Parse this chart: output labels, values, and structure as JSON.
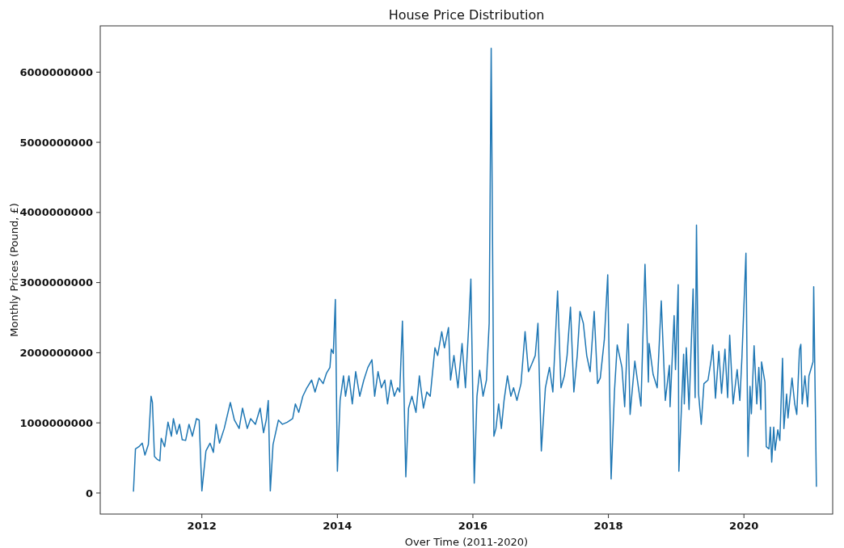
{
  "chart_data": {
    "type": "line",
    "title": "House Price Distribution",
    "xlabel": "Over Time (2011-2020)",
    "ylabel": "Monthly Prices (Pound, £)",
    "xlim": [
      2010.5,
      2021.31
    ],
    "xticks": [
      2012,
      2014,
      2016,
      2018,
      2020
    ],
    "ylim": [
      -300000000,
      6660000000
    ],
    "yticks": [
      0,
      1000000000,
      2000000000,
      3000000000,
      4000000000,
      5000000000,
      6000000000
    ],
    "grid": false,
    "marker": "none",
    "line_style": "solid",
    "x": [
      2010.99,
      2011.02,
      2011.07,
      2011.12,
      2011.16,
      2011.21,
      2011.25,
      2011.27,
      2011.3,
      2011.34,
      2011.38,
      2011.4,
      2011.45,
      2011.5,
      2011.55,
      2011.58,
      2011.63,
      2011.67,
      2011.71,
      2011.76,
      2011.81,
      2011.86,
      2011.92,
      2011.96,
      2012.0,
      2012.06,
      2012.12,
      2012.17,
      2012.21,
      2012.26,
      2012.33,
      2012.42,
      2012.48,
      2012.55,
      2012.6,
      2012.67,
      2012.72,
      2012.79,
      2012.86,
      2012.91,
      2012.95,
      2012.98,
      2013.01,
      2013.05,
      2013.13,
      2013.19,
      2013.26,
      2013.34,
      2013.38,
      2013.43,
      2013.49,
      2013.55,
      2013.62,
      2013.67,
      2013.73,
      2013.79,
      2013.84,
      2013.89,
      2013.91,
      2013.94,
      2013.97,
      2014.0,
      2014.04,
      2014.09,
      2014.12,
      2014.17,
      2014.22,
      2014.27,
      2014.33,
      2014.39,
      2014.45,
      2014.51,
      2014.55,
      2014.6,
      2014.65,
      2014.7,
      2014.74,
      2014.79,
      2014.84,
      2014.89,
      2014.92,
      2014.96,
      2015.01,
      2015.05,
      2015.1,
      2015.16,
      2015.21,
      2015.27,
      2015.32,
      2015.37,
      2015.44,
      2015.48,
      2015.54,
      2015.58,
      2015.64,
      2015.67,
      2015.72,
      2015.78,
      2015.84,
      2015.89,
      2015.94,
      2015.97,
      2016.02,
      2016.06,
      2016.1,
      2016.15,
      2016.2,
      2016.24,
      2016.27,
      2016.31,
      2016.34,
      2016.38,
      2016.42,
      2016.46,
      2016.51,
      2016.56,
      2016.6,
      2016.65,
      2016.71,
      2016.77,
      2016.82,
      2016.87,
      2016.92,
      2016.96,
      2017.01,
      2017.07,
      2017.13,
      2017.18,
      2017.25,
      2017.3,
      2017.35,
      2017.39,
      2017.44,
      2017.49,
      2017.54,
      2017.58,
      2017.63,
      2017.68,
      2017.73,
      2017.79,
      2017.84,
      2017.88,
      2017.94,
      2017.99,
      2018.04,
      2018.09,
      2018.13,
      2018.2,
      2018.24,
      2018.29,
      2018.32,
      2018.39,
      2018.48,
      2018.54,
      2018.59,
      2018.6,
      2018.66,
      2018.72,
      2018.78,
      2018.84,
      2018.9,
      2018.91,
      2018.97,
      2018.99,
      2019.03,
      2019.04,
      2019.11,
      2019.12,
      2019.15,
      2019.19,
      2019.25,
      2019.28,
      2019.3,
      2019.33,
      2019.37,
      2019.41,
      2019.47,
      2019.52,
      2019.54,
      2019.58,
      2019.63,
      2019.67,
      2019.72,
      2019.76,
      2019.79,
      2019.84,
      2019.9,
      2019.94,
      2019.97,
      2020.03,
      2020.06,
      2020.09,
      2020.11,
      2020.15,
      2020.19,
      2020.22,
      2020.25,
      2020.26,
      2020.31,
      2020.33,
      2020.37,
      2020.39,
      2020.41,
      2020.44,
      2020.46,
      2020.5,
      2020.53,
      2020.57,
      2020.59,
      2020.63,
      2020.65,
      2020.71,
      2020.75,
      2020.78,
      2020.82,
      2020.84,
      2020.86,
      2020.9,
      2020.94,
      2020.96,
      2021.02,
      2021.03,
      2021.07
    ],
    "series": [
      {
        "color": "#1f77b4",
        "values": [
          20000000.0,
          630000000.0,
          660000000.0,
          710000000.0,
          540000000.0,
          690000000.0,
          1380000000.0,
          1290000000.0,
          520000000.0,
          480000000.0,
          460000000.0,
          780000000.0,
          660000000.0,
          1010000000.0,
          810000000.0,
          1060000000.0,
          840000000.0,
          980000000.0,
          760000000.0,
          750000000.0,
          980000000.0,
          810000000.0,
          1060000000.0,
          1040000000.0,
          30000000.0,
          600000000.0,
          710000000.0,
          580000000.0,
          980000000.0,
          710000000.0,
          920000000.0,
          1290000000.0,
          1040000000.0,
          920000000.0,
          1210000000.0,
          920000000.0,
          1060000000.0,
          980000000.0,
          1210000000.0,
          860000000.0,
          1040000000.0,
          1320000000.0,
          30000000.0,
          690000000.0,
          1040000000.0,
          980000000.0,
          1010000000.0,
          1060000000.0,
          1270000000.0,
          1150000000.0,
          1380000000.0,
          1500000000.0,
          1610000000.0,
          1440000000.0,
          1640000000.0,
          1560000000.0,
          1710000000.0,
          1790000000.0,
          2050000000.0,
          1990000000.0,
          2760000000.0,
          310000000.0,
          1320000000.0,
          1670000000.0,
          1380000000.0,
          1670000000.0,
          1270000000.0,
          1730000000.0,
          1380000000.0,
          1610000000.0,
          1790000000.0,
          1900000000.0,
          1380000000.0,
          1730000000.0,
          1500000000.0,
          1610000000.0,
          1270000000.0,
          1610000000.0,
          1380000000.0,
          1500000000.0,
          1440000000.0,
          2450000000.0,
          230000000.0,
          1210000000.0,
          1380000000.0,
          1150000000.0,
          1670000000.0,
          1210000000.0,
          1440000000.0,
          1380000000.0,
          2070000000.0,
          1960000000.0,
          2300000000.0,
          2070000000.0,
          2360000000.0,
          1610000000.0,
          1960000000.0,
          1500000000.0,
          2130000000.0,
          1500000000.0,
          2420000000.0,
          3050000000.0,
          140000000.0,
          1380000000.0,
          1750000000.0,
          1380000000.0,
          1610000000.0,
          2420000000.0,
          6340000000.0,
          810000000.0,
          920000000.0,
          1270000000.0,
          920000000.0,
          1320000000.0,
          1670000000.0,
          1380000000.0,
          1500000000.0,
          1320000000.0,
          1560000000.0,
          2300000000.0,
          1730000000.0,
          1840000000.0,
          1960000000.0,
          2420000000.0,
          600000000.0,
          1500000000.0,
          1790000000.0,
          1440000000.0,
          2880000000.0,
          1500000000.0,
          1670000000.0,
          1960000000.0,
          2650000000.0,
          1440000000.0,
          1960000000.0,
          2590000000.0,
          2420000000.0,
          1960000000.0,
          1730000000.0,
          2590000000.0,
          1560000000.0,
          1640000000.0,
          2190000000.0,
          3110000000.0,
          200000000.0,
          1460000000.0,
          2110000000.0,
          1790000000.0,
          1230000000.0,
          2410000000.0,
          1120000000.0,
          1880000000.0,
          1240000000.0,
          3260000000.0,
          1580000000.0,
          2130000000.0,
          1690000000.0,
          1500000000.0,
          2740000000.0,
          1320000000.0,
          1820000000.0,
          1230000000.0,
          2530000000.0,
          1760000000.0,
          2970000000.0,
          310000000.0,
          1980000000.0,
          1270000000.0,
          2070000000.0,
          1190000000.0,
          2910000000.0,
          1360000000.0,
          3820000000.0,
          1420000000.0,
          980000000.0,
          1560000000.0,
          1610000000.0,
          1920000000.0,
          2110000000.0,
          1350000000.0,
          2020000000.0,
          1420000000.0,
          2050000000.0,
          1360000000.0,
          2250000000.0,
          1270000000.0,
          1760000000.0,
          1320000000.0,
          1920000000.0,
          3420000000.0,
          520000000.0,
          1520000000.0,
          1130000000.0,
          2100000000.0,
          1270000000.0,
          1790000000.0,
          1190000000.0,
          1870000000.0,
          1580000000.0,
          660000000.0,
          630000000.0,
          940000000.0,
          440000000.0,
          940000000.0,
          610000000.0,
          900000000.0,
          750000000.0,
          1920000000.0,
          920000000.0,
          1410000000.0,
          1070000000.0,
          1640000000.0,
          1270000000.0,
          1120000000.0,
          2040000000.0,
          2120000000.0,
          1270000000.0,
          1670000000.0,
          1230000000.0,
          1670000000.0,
          1870000000.0,
          2940000000.0,
          90000000.0
        ]
      }
    ]
  }
}
